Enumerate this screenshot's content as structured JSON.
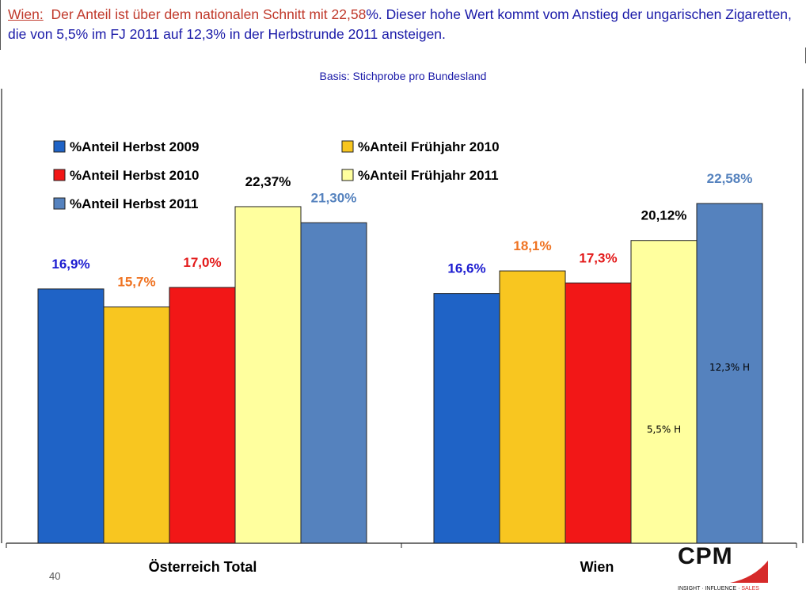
{
  "headline": {
    "city": "Wien:",
    "part1": "Der Anteil ist über dem nationalen Schnitt mit 22,58",
    "part2": "%. Dieser hohe Wert kommt vom Anstieg der ungarischen Zigaretten, die von 5,5% im FJ 2011 auf 12,3% in der Herbstrunde 2011 ansteigen."
  },
  "basis": "Basis: Stichprobe pro Bundesland",
  "page_number": "40",
  "logo": {
    "name": "CPM",
    "tag_main": "INSIGHT · INFLUENCE · ",
    "tag_sales": "SALES"
  },
  "chart_data": {
    "type": "bar",
    "categories": [
      "Österreich Total",
      "Wien"
    ],
    "series": [
      {
        "name": "%Anteil Herbst 2009",
        "values": [
          16.9,
          16.6
        ],
        "labels": [
          "16,9%",
          "16,6%"
        ],
        "color": "#1f63c6",
        "label_color": "#1b1bd0"
      },
      {
        "name": "%Anteil Frühjahr 2010",
        "values": [
          15.7,
          18.1
        ],
        "labels": [
          "15,7%",
          "18,1%"
        ],
        "color": "#f8c620",
        "label_color": "#ef7322"
      },
      {
        "name": "%Anteil Herbst 2010",
        "values": [
          17.0,
          17.3
        ],
        "labels": [
          "17,0%",
          "17,3%"
        ],
        "color": "#f21717",
        "label_color": "#e31a1a"
      },
      {
        "name": "%Anteil Frühjahr 2011",
        "values": [
          22.37,
          20.12
        ],
        "labels": [
          "22,37%",
          "20,12%"
        ],
        "color": "#ffff9e",
        "label_color": "#000000"
      },
      {
        "name": "%Anteil Herbst 2011",
        "values": [
          21.3,
          22.58
        ],
        "labels": [
          "21,30%",
          "22,58%"
        ],
        "color": "#5582be",
        "label_color": "#5582be"
      }
    ],
    "annotations": [
      {
        "category": "Wien",
        "series": "%Anteil Frühjahr 2011",
        "text": "5,5% H"
      },
      {
        "category": "Wien",
        "series": "%Anteil Herbst 2011",
        "text": "12,3% H"
      }
    ],
    "ylim": [
      0,
      30
    ],
    "grid": false,
    "legend_position": "top-left"
  }
}
